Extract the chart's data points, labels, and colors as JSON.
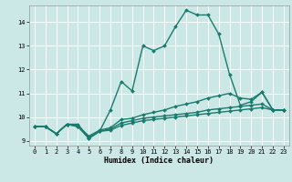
{
  "xlabel": "Humidex (Indice chaleur)",
  "bg_color": "#cce8e6",
  "grid_color": "#ffffff",
  "line_color": "#1a7a6e",
  "xlim": [
    -0.5,
    23.5
  ],
  "ylim": [
    8.8,
    14.7
  ],
  "yticks": [
    9,
    10,
    11,
    12,
    13,
    14
  ],
  "xticks": [
    0,
    1,
    2,
    3,
    4,
    5,
    6,
    7,
    8,
    9,
    10,
    11,
    12,
    13,
    14,
    15,
    16,
    17,
    18,
    19,
    20,
    21,
    22,
    23
  ],
  "lines": [
    {
      "x": [
        0,
        1,
        2,
        3,
        4,
        5,
        6,
        7,
        8,
        9,
        10,
        11,
        12,
        13,
        14,
        15,
        16,
        17,
        18,
        19,
        20,
        21,
        22,
        23
      ],
      "y": [
        9.6,
        9.6,
        9.3,
        9.7,
        9.7,
        9.1,
        9.4,
        10.3,
        11.5,
        11.1,
        13.0,
        12.8,
        13.0,
        13.8,
        14.5,
        14.3,
        14.3,
        13.5,
        11.8,
        10.5,
        10.65,
        11.05,
        10.3,
        10.3
      ]
    },
    {
      "x": [
        0,
        1,
        2,
        3,
        4,
        5,
        6,
        7,
        8,
        9,
        10,
        11,
        12,
        13,
        14,
        15,
        16,
        17,
        18,
        19,
        20,
        21,
        22,
        23
      ],
      "y": [
        9.6,
        9.6,
        9.3,
        9.7,
        9.65,
        9.2,
        9.45,
        9.55,
        9.9,
        9.95,
        10.1,
        10.2,
        10.3,
        10.45,
        10.55,
        10.65,
        10.8,
        10.9,
        11.0,
        10.8,
        10.75,
        11.05,
        10.3,
        10.3
      ]
    },
    {
      "x": [
        0,
        1,
        2,
        3,
        4,
        5,
        6,
        7,
        8,
        9,
        10,
        11,
        12,
        13,
        14,
        15,
        16,
        17,
        18,
        19,
        20,
        21,
        22,
        23
      ],
      "y": [
        9.6,
        9.6,
        9.3,
        9.7,
        9.6,
        9.15,
        9.4,
        9.5,
        9.75,
        9.85,
        9.95,
        10.0,
        10.05,
        10.1,
        10.15,
        10.2,
        10.3,
        10.35,
        10.4,
        10.45,
        10.5,
        10.55,
        10.3,
        10.3
      ]
    },
    {
      "x": [
        0,
        1,
        2,
        3,
        4,
        5,
        6,
        7,
        8,
        9,
        10,
        11,
        12,
        13,
        14,
        15,
        16,
        17,
        18,
        19,
        20,
        21,
        22,
        23
      ],
      "y": [
        9.6,
        9.6,
        9.3,
        9.7,
        9.6,
        9.1,
        9.4,
        9.45,
        9.65,
        9.75,
        9.85,
        9.9,
        9.95,
        10.0,
        10.05,
        10.1,
        10.15,
        10.2,
        10.25,
        10.3,
        10.35,
        10.4,
        10.3,
        10.3
      ]
    }
  ]
}
